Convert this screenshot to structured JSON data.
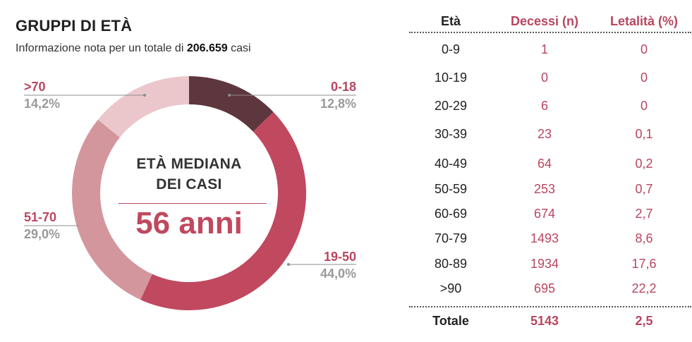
{
  "header": {
    "title": "GRUPPI DI ETÀ",
    "subtitle_prefix": "Informazione nota per un totale di",
    "subtitle_total": "206.659",
    "subtitle_suffix": "casi"
  },
  "donut": {
    "center_line1": "ETÀ MEDIANA",
    "center_line2": "DEI CASI",
    "center_value": "56 anni",
    "colors": {
      "0-18": "#5e363d",
      "19-50": "#c0485f",
      "51-70": "#d4969d",
      "70plus": "#ebc7cb"
    }
  },
  "chart_data": {
    "type": "pie",
    "title": "GRUPPI DI ETÀ",
    "categories": [
      "0-18",
      "19-50",
      "51-70",
      ">70"
    ],
    "values": [
      12.8,
      44.0,
      29.0,
      14.2
    ],
    "labels": [
      "12,8%",
      "44,0%",
      "29,0%",
      "14,2%"
    ]
  },
  "table": {
    "headers": [
      "Età",
      "Decessi (n)",
      "Letalità (%)"
    ],
    "rows": [
      [
        "0-9",
        "1",
        "0"
      ],
      [
        "10-19",
        "0",
        "0"
      ],
      [
        "20-29",
        "6",
        "0"
      ],
      [
        "30-39",
        "23",
        "0,1"
      ],
      [
        "40-49",
        "64",
        "0,2"
      ],
      [
        "50-59",
        "253",
        "0,7"
      ],
      [
        "60-69",
        "674",
        "2,7"
      ],
      [
        "70-79",
        "1493",
        "8,6"
      ],
      [
        "80-89",
        "1934",
        "17,6"
      ],
      [
        ">90",
        "695",
        "22,2"
      ]
    ],
    "total": [
      "Totale",
      "5143",
      "2,5"
    ]
  }
}
